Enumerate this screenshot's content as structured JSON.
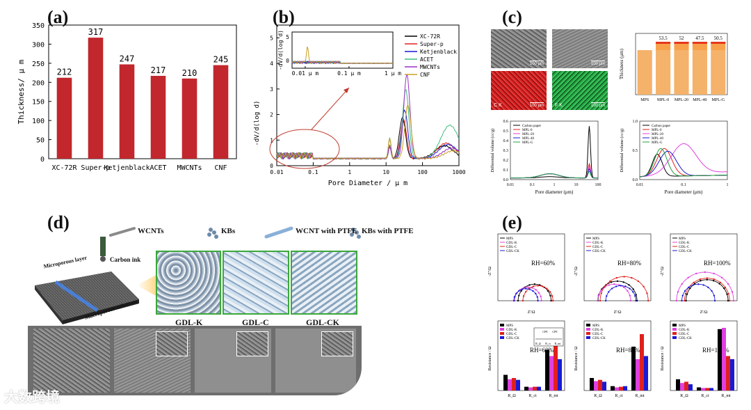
{
  "panels": {
    "a": "(a)",
    "b": "(b)",
    "c": "(c)",
    "d": "(d)",
    "e": "(e)"
  },
  "panel_a": {
    "ylabel": "Thickness/ μ m",
    "chart_data": {
      "type": "bar",
      "categories": [
        "XC-72R",
        "Super-p",
        "Ketjenblack",
        "ACET",
        "MWCNTs",
        "CNF"
      ],
      "values": [
        212,
        317,
        247,
        217,
        210,
        245
      ],
      "ylim": [
        0,
        350
      ],
      "yticks": [
        0,
        50,
        100,
        150,
        200,
        250,
        300,
        350
      ],
      "bar_color": "#c1272d"
    }
  },
  "panel_b": {
    "xlabel": "Pore Diameter / μ m",
    "ylabel": "-dV/d(log d)",
    "xticks": [
      "0.01",
      "0.1",
      "1",
      "10",
      "100",
      "1000"
    ],
    "yticks": [
      "0",
      "1",
      "2",
      "3",
      "4",
      "5"
    ],
    "inset": {
      "ylabel": "-dV/d(log d)",
      "xticks": [
        "0.01 μ m",
        "0.1 μ m",
        "1 μ m"
      ],
      "yticks": [
        "0",
        "5"
      ]
    },
    "legend": [
      {
        "name": "XC-72R",
        "color": "#000000"
      },
      {
        "name": "Super-p",
        "color": "#e0201c"
      },
      {
        "name": "Ketjenblack",
        "color": "#1a1ad6"
      },
      {
        "name": "ACET",
        "color": "#3dbf7a"
      },
      {
        "name": "MWCNTs",
        "color": "#9b2fc8"
      },
      {
        "name": "CNF",
        "color": "#c8a020"
      }
    ]
  },
  "panel_c": {
    "sem_tags": [
      "C K",
      "F K"
    ],
    "scale_labels": [
      "100 μm",
      "100 μm",
      "100 μm",
      "100 μm"
    ],
    "thickness": {
      "ylabel": "Thickness (μm)",
      "categories": [
        "MPS",
        "MPL-0",
        "MPL-20",
        "MPL-40",
        "MPL-G"
      ],
      "labels": [
        "53.5",
        "52",
        "47.5",
        "50.5"
      ]
    },
    "dist1": {
      "ylabel": "Differential volume (cc/g)",
      "xlabel": "Pore diameter (μm)",
      "xticks": [
        "0.01",
        "0.1",
        "1",
        "10",
        "100"
      ],
      "yticks": [
        "0.0",
        "0.1",
        "0.2",
        "0.3",
        "0.4",
        "0.5",
        "0.6"
      ],
      "legend": [
        "Carbon paper",
        "MPL-0",
        "MPL-20",
        "MPL-40",
        "MPL-G"
      ]
    },
    "dist2": {
      "ylabel": "Differential volume (cc/g)",
      "xlabel": "Pore diameter (μm)",
      "xticks": [
        "0.01",
        "0.1",
        "1"
      ],
      "yticks": [
        "0.0",
        "0.5",
        "1.0"
      ],
      "legend": [
        "Carbon paper",
        "MPL-0",
        "MPL-20",
        "MPL-40",
        "MPL-G"
      ]
    },
    "series_colors": [
      "#000000",
      "#e0201c",
      "#e040e0",
      "#1a1ad6",
      "#20a040"
    ]
  },
  "panel_d": {
    "legend": [
      "WCNTs",
      "KBs",
      "WCNT with PTFE",
      "KBs with PTFE"
    ],
    "carbon_ink": "Carbon ink",
    "microporous_layer": "Microporous layer",
    "macroporous_substrate": "Macroporous substrate",
    "captions": [
      "GDL-K",
      "GDL-C",
      "GDL-CK"
    ]
  },
  "panel_e": {
    "rh": [
      "RH=60%",
      "RH=80%",
      "RH=100%"
    ],
    "legend": [
      "MPS",
      "GDL-K",
      "GDL-C",
      "GDL-CK"
    ],
    "colors": [
      "#000000",
      "#e040e0",
      "#e0201c",
      "#1a1ad6"
    ],
    "nyquist_xlabel": "Z'/Ω",
    "nyquist_ylabel": "-Z''/Ω",
    "bar_ylabel": "Resistance / Ω",
    "bar_categories": [
      "R_Ω",
      "R_ct",
      "R_mt"
    ],
    "circuit_labels": [
      "CPE",
      "CPE",
      "R_Ω",
      "R_ct",
      "R_mt"
    ]
  },
  "watermark": "大数跨境"
}
